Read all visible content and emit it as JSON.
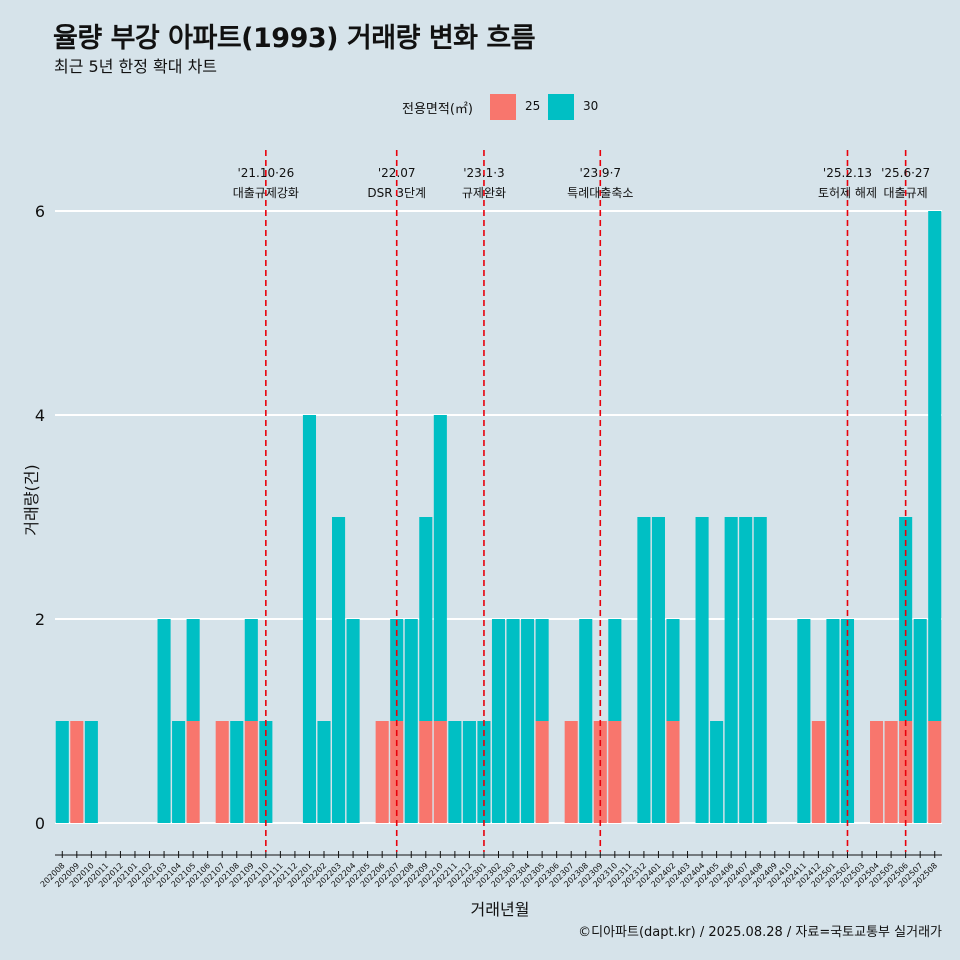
{
  "title": "율량 부강 아파트(1993) 거래량 변화 흐름",
  "subtitle": "최근 5년 한정 확대 차트",
  "caption": "©디아파트(dapt.kr) / 2025.08.28 / 자료=국토교통부 실거래가",
  "colors": {
    "background": "#d6e3ea",
    "s25": "#f8766d",
    "s30": "#00bfc4",
    "vline": "#e8000b",
    "grid": "#ffffff"
  },
  "chart_data": {
    "type": "bar",
    "stacked": true,
    "xlabel": "거래년월",
    "ylabel": "거래량(건)",
    "ylim": [
      0,
      6
    ],
    "yticks": [
      0,
      2,
      4,
      6
    ],
    "grid": "horizontal",
    "legend": {
      "title": "전용면적(㎡)",
      "position": "top",
      "entries": [
        "25",
        "30"
      ]
    },
    "categories": [
      "202008",
      "202009",
      "202010",
      "202011",
      "202012",
      "202101",
      "202102",
      "202103",
      "202104",
      "202105",
      "202106",
      "202107",
      "202108",
      "202109",
      "202110",
      "202111",
      "202112",
      "202201",
      "202202",
      "202203",
      "202204",
      "202205",
      "202206",
      "202207",
      "202208",
      "202209",
      "202210",
      "202211",
      "202212",
      "202301",
      "202302",
      "202303",
      "202304",
      "202305",
      "202306",
      "202307",
      "202308",
      "202309",
      "202310",
      "202311",
      "202312",
      "202401",
      "202402",
      "202403",
      "202404",
      "202405",
      "202406",
      "202407",
      "202408",
      "202409",
      "202410",
      "202411",
      "202412",
      "202501",
      "202502",
      "202503",
      "202504",
      "202505",
      "202506",
      "202507",
      "202508"
    ],
    "series": [
      {
        "name": "25",
        "color": "#f8766d",
        "values": [
          0,
          1,
          0,
          0,
          0,
          0,
          0,
          0,
          0,
          1,
          0,
          1,
          0,
          1,
          0,
          0,
          0,
          0,
          0,
          0,
          0,
          0,
          1,
          1,
          0,
          1,
          1,
          0,
          0,
          0,
          0,
          0,
          0,
          1,
          0,
          1,
          0,
          1,
          1,
          0,
          0,
          0,
          1,
          0,
          0,
          0,
          0,
          0,
          0,
          0,
          0,
          0,
          1,
          0,
          0,
          0,
          1,
          1,
          1,
          0,
          1
        ]
      },
      {
        "name": "30",
        "color": "#00bfc4",
        "values": [
          1,
          0,
          1,
          0,
          0,
          0,
          0,
          2,
          1,
          1,
          0,
          0,
          1,
          1,
          1,
          0,
          0,
          4,
          1,
          3,
          2,
          0,
          0,
          1,
          2,
          2,
          3,
          1,
          1,
          1,
          2,
          2,
          2,
          1,
          0,
          0,
          2,
          0,
          1,
          0,
          3,
          3,
          1,
          0,
          3,
          1,
          3,
          3,
          3,
          0,
          0,
          2,
          0,
          2,
          2,
          0,
          0,
          0,
          2,
          2,
          5
        ]
      }
    ],
    "annotations": [
      {
        "at": "202110",
        "line1": "'21.10·26",
        "line2": "대출규제강화"
      },
      {
        "at": "202207",
        "line1": "'22.07",
        "line2": "DSR 3단계"
      },
      {
        "at": "202301",
        "line1": "'23.1·3",
        "line2": "규제완화"
      },
      {
        "at": "202309",
        "line1": "'23.9·7",
        "line2": "특례대출축소"
      },
      {
        "at": "202502",
        "line1": "'25.2.13",
        "line2": "토허제 해제"
      },
      {
        "at": "202506",
        "line1": "'25.6·27",
        "line2": "대출규제"
      }
    ]
  }
}
